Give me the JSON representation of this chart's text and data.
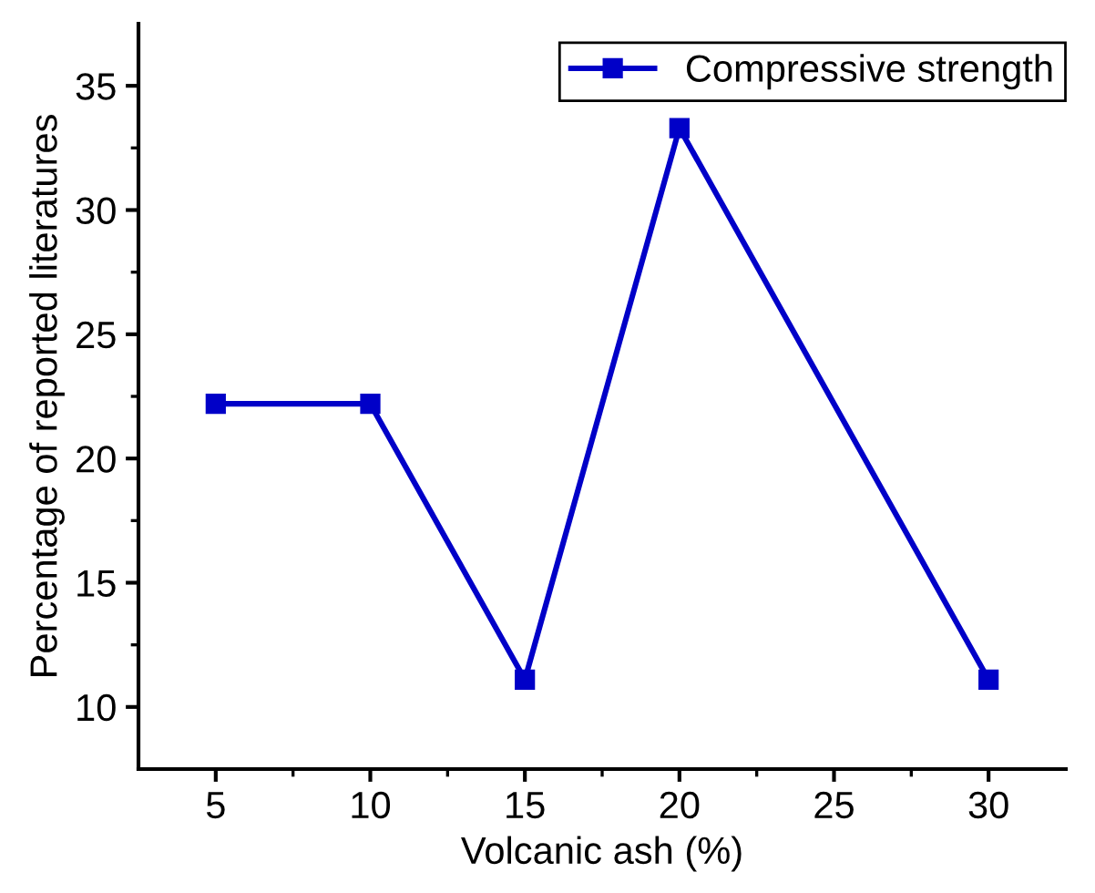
{
  "chart_data": {
    "type": "line",
    "xlabel": "Volcanic ash (%)",
    "ylabel": "Percentage of reported literatures",
    "x": [
      5,
      10,
      15,
      20,
      30
    ],
    "series": [
      {
        "name": "Compressive strength",
        "color": "#0000c8",
        "values": [
          22.2,
          22.2,
          11.1,
          33.3,
          11.1
        ]
      }
    ],
    "xlim": [
      2.5,
      32.5
    ],
    "xticks": [
      5,
      {
        "value": 7.5,
        "label": null
      },
      10,
      {
        "value": 12.5,
        "label": null
      },
      15,
      {
        "value": 17.5,
        "label": null
      },
      20,
      {
        "value": 22.5,
        "label": null
      },
      25,
      {
        "value": 27.5,
        "label": null
      },
      30
    ],
    "ylim": [
      7.5,
      37.5
    ],
    "yticks": [
      10,
      {
        "value": 12.5,
        "label": null
      },
      15,
      {
        "value": 17.5,
        "label": null
      },
      20,
      {
        "value": 22.5,
        "label": null
      },
      25,
      {
        "value": 27.5,
        "label": null
      },
      30,
      {
        "value": 32.5,
        "label": null
      },
      35
    ],
    "marker": "square",
    "line_style": "solid",
    "legend": "top right",
    "grid": false
  }
}
